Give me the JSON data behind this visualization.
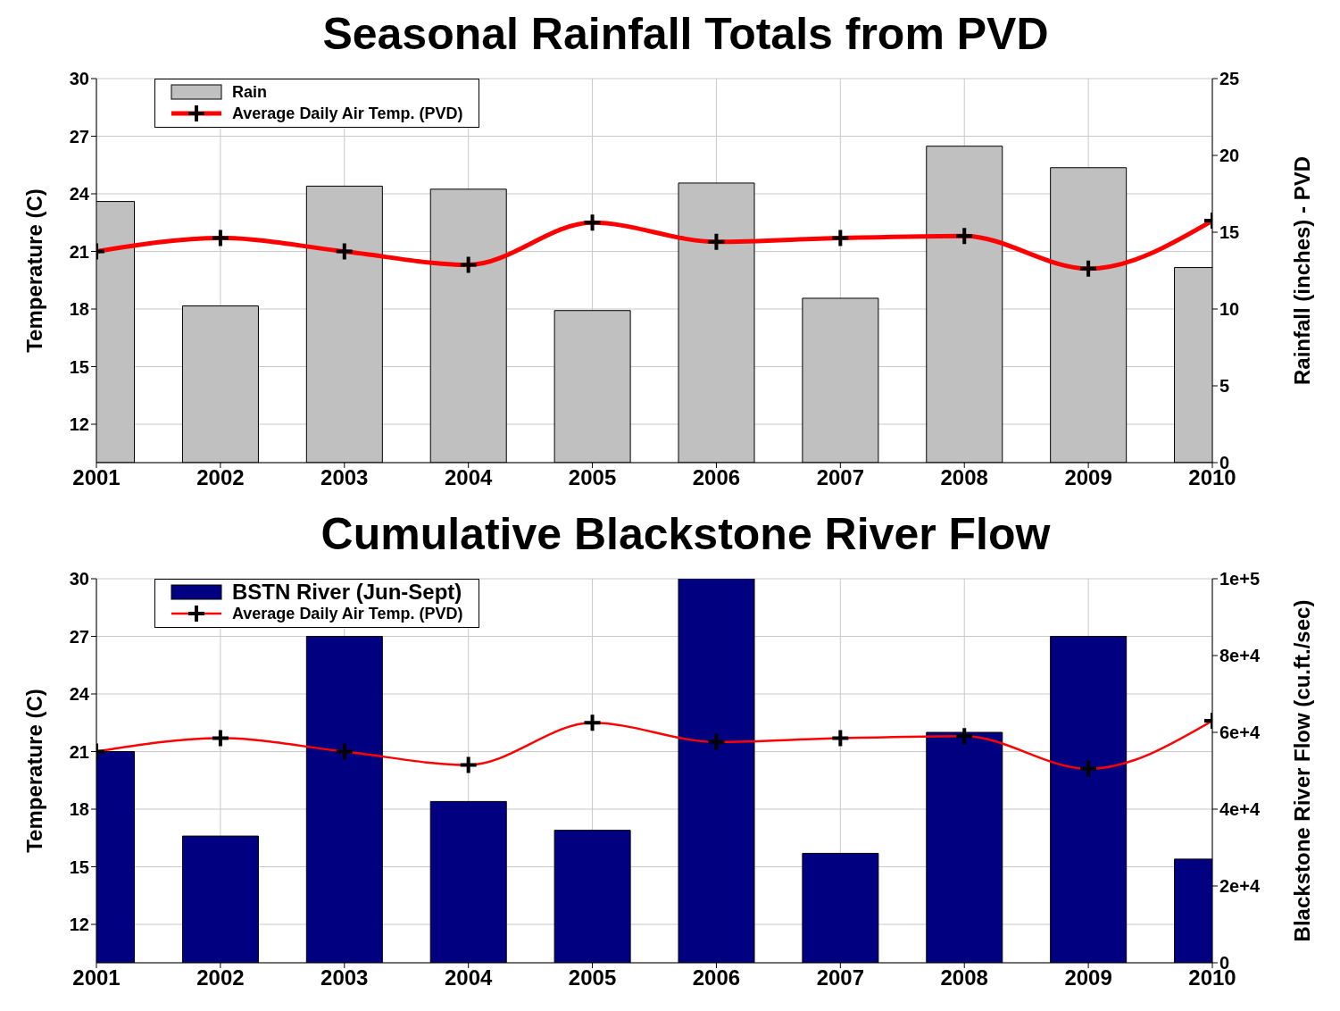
{
  "chart_data": [
    {
      "type": "bar",
      "title": "Seasonal Rainfall Totals from PVD",
      "ylabel": "Temperature (C)",
      "y2label": "Rainfall (inches) - PVD",
      "x": [
        2001,
        2002,
        2003,
        2004,
        2005,
        2006,
        2007,
        2008,
        2009,
        2010
      ],
      "series": [
        {
          "name": "Rain",
          "axis": "y2",
          "color": "#c0c0c0",
          "values": [
            17.0,
            10.2,
            18.0,
            17.8,
            9.9,
            18.2,
            10.7,
            20.6,
            19.2,
            12.7
          ]
        },
        {
          "name": "Average Daily Air Temp. (PVD)",
          "type": "line",
          "color": "#ff0000",
          "values": [
            21.0,
            21.7,
            21.0,
            20.3,
            22.5,
            21.5,
            21.7,
            21.8,
            20.1,
            22.6
          ]
        }
      ],
      "xlim": [
        2001,
        2010
      ],
      "xticks": [
        2001,
        2002,
        2003,
        2004,
        2005,
        2006,
        2007,
        2008,
        2009,
        2010
      ],
      "ylim": [
        10,
        30
      ],
      "yticks": [
        12,
        15,
        18,
        21,
        24,
        27,
        30
      ],
      "y2lim": [
        0,
        25
      ],
      "y2ticks": [
        0,
        5,
        10,
        15,
        20,
        25
      ],
      "grid": true,
      "legend": "top left",
      "marker": "cross",
      "line_style": "solid"
    },
    {
      "type": "bar",
      "title": "Cumulative Blackstone River Flow",
      "ylabel": "Temperature (C)",
      "y2label": "Blackstone River Flow (cu.ft./sec)",
      "x": [
        2001,
        2002,
        2003,
        2004,
        2005,
        2006,
        2007,
        2008,
        2009,
        2010
      ],
      "series": [
        {
          "name": "BSTN River (Jun-Sept)",
          "axis": "y2",
          "color": "#000080",
          "values": [
            55000,
            33000,
            85000,
            42000,
            34500,
            100000,
            28500,
            60000,
            85000,
            27000
          ]
        },
        {
          "name": "Average Daily Air Temp. (PVD)",
          "type": "line",
          "color": "#ff0000",
          "values": [
            21.0,
            21.7,
            21.0,
            20.3,
            22.5,
            21.5,
            21.7,
            21.8,
            20.1,
            22.6
          ]
        }
      ],
      "xlim": [
        2001,
        2010
      ],
      "xticks": [
        2001,
        2002,
        2003,
        2004,
        2005,
        2006,
        2007,
        2008,
        2009,
        2010
      ],
      "ylim": [
        10,
        30
      ],
      "yticks": [
        12,
        15,
        18,
        21,
        24,
        27,
        30
      ],
      "y2lim": [
        0,
        100000
      ],
      "y2ticks": [
        0,
        {
          "value": 20000,
          "label": "2e+4"
        },
        {
          "value": 40000,
          "label": "4e+4"
        },
        {
          "value": 60000,
          "label": "6e+4"
        },
        {
          "value": 80000,
          "label": "8e+4"
        },
        {
          "value": 100000,
          "label": "1e+5"
        }
      ],
      "grid": true,
      "legend": "top left",
      "marker": "cross",
      "line_style": "solid"
    }
  ]
}
